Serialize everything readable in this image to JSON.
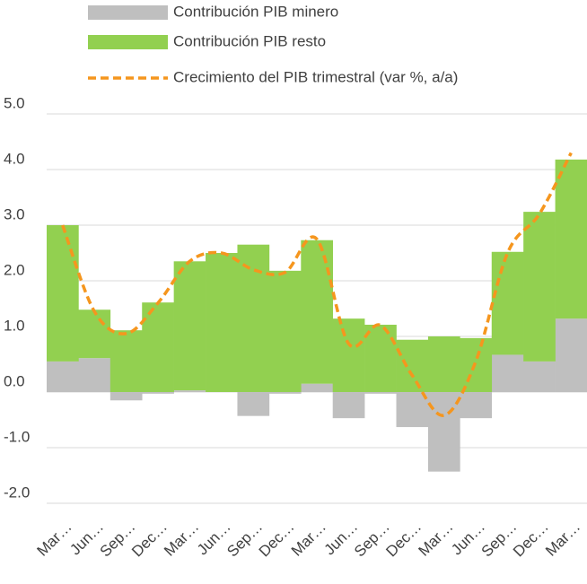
{
  "chart_data": {
    "type": "bar",
    "stacked": true,
    "categories": [
      "Mar…",
      "Jun…",
      "Sep…",
      "Dec…",
      "Mar…",
      "Jun…",
      "Sep…",
      "Dec…",
      "Mar…",
      "Jun…",
      "Sep…",
      "Dec…",
      "Mar…",
      "Jun…",
      "Sep…",
      "Dec…",
      "Mar…"
    ],
    "series": [
      {
        "name": "Contribución PIB minero",
        "type": "bar",
        "color": "#bfbfbf",
        "values": [
          0.55,
          0.61,
          -0.15,
          -0.03,
          0.03,
          0,
          -0.43,
          -0.03,
          0.15,
          -0.47,
          -0.03,
          -0.63,
          -1.43,
          -0.47,
          0.67,
          0.55,
          1.32
        ]
      },
      {
        "name": "Contribución PIB resto",
        "type": "bar",
        "color": "#92d050",
        "values": [
          2.45,
          0.87,
          1.11,
          1.61,
          2.32,
          2.5,
          2.65,
          2.18,
          2.58,
          1.32,
          1.21,
          0.94,
          1.0,
          0.97,
          1.85,
          2.69,
          2.86
        ]
      },
      {
        "name": "Crecimiento del PIB trimestral (var %, a/a)",
        "type": "line",
        "color": "#f5961e",
        "dashed": true,
        "values": [
          3.0,
          1.45,
          1.05,
          1.6,
          2.35,
          2.5,
          2.2,
          2.15,
          2.75,
          0.87,
          1.2,
          0.3,
          -0.42,
          0.55,
          2.5,
          3.2,
          4.3
        ]
      }
    ],
    "ylim": [
      -2.4,
      5.0
    ],
    "yticks": [
      {
        "value": 5,
        "label": "5.0"
      },
      {
        "value": 4,
        "label": "4.0"
      },
      {
        "value": 3,
        "label": "3.0"
      },
      {
        "value": 2,
        "label": "2.0"
      },
      {
        "value": 1,
        "label": "1.0"
      },
      {
        "value": 0,
        "label": "0.0"
      },
      {
        "value": -1,
        "label": "-1.0"
      },
      {
        "value": -2,
        "label": "-2.0"
      }
    ],
    "grid": true,
    "legend": "top"
  }
}
